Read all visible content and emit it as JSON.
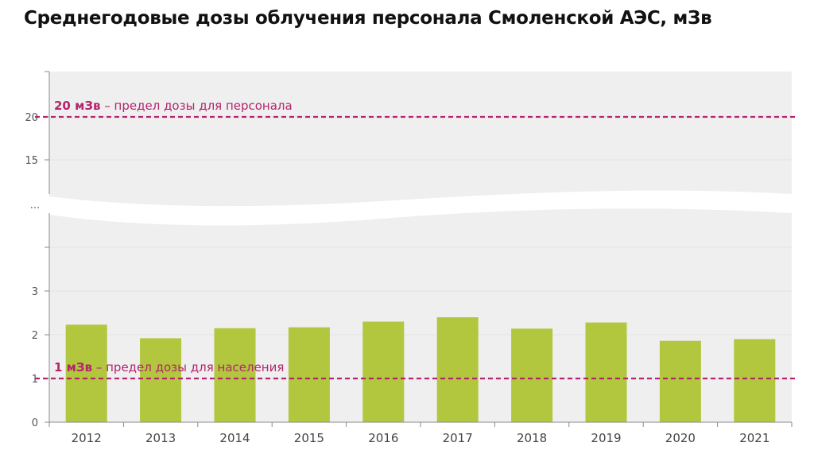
{
  "title": "Среднегодовые дозы облучения персонала Смоленской АЭС, мЗв",
  "chart_data": {
    "type": "bar",
    "title": "Среднегодовые дозы облучения персонала Смоленской АЭС, мЗв",
    "xlabel": "",
    "ylabel": "",
    "categories": [
      "2012",
      "2013",
      "2014",
      "2015",
      "2016",
      "2017",
      "2018",
      "2019",
      "2020",
      "2021"
    ],
    "values": [
      2.23,
      1.92,
      2.15,
      2.17,
      2.3,
      2.4,
      2.14,
      2.28,
      1.86,
      1.9
    ],
    "lower_ylim": [
      0,
      4
    ],
    "lower_ticks": [
      "0",
      "1",
      "2",
      "3"
    ],
    "upper_ylim": [
      11,
      25
    ],
    "upper_ticks": [
      "15",
      "20"
    ],
    "axis_break": true,
    "axis_break_marker": "...",
    "grid": true,
    "bar_color": "#b2c63e",
    "reference_lines": [
      {
        "value": 20,
        "label_bold": "20 мЗв",
        "label_rest": " – предел дозы для персонала",
        "color": "#b5246e"
      },
      {
        "value": 1,
        "label_bold": "1 мЗв",
        "label_rest": " – предел дозы для населения",
        "color": "#b5246e"
      }
    ]
  },
  "colors": {
    "plot_background": "#efefef",
    "grid": "#e3e3e3",
    "axis": "#8a8a8a",
    "bar": "#b2c63e",
    "reference": "#b5246e"
  }
}
